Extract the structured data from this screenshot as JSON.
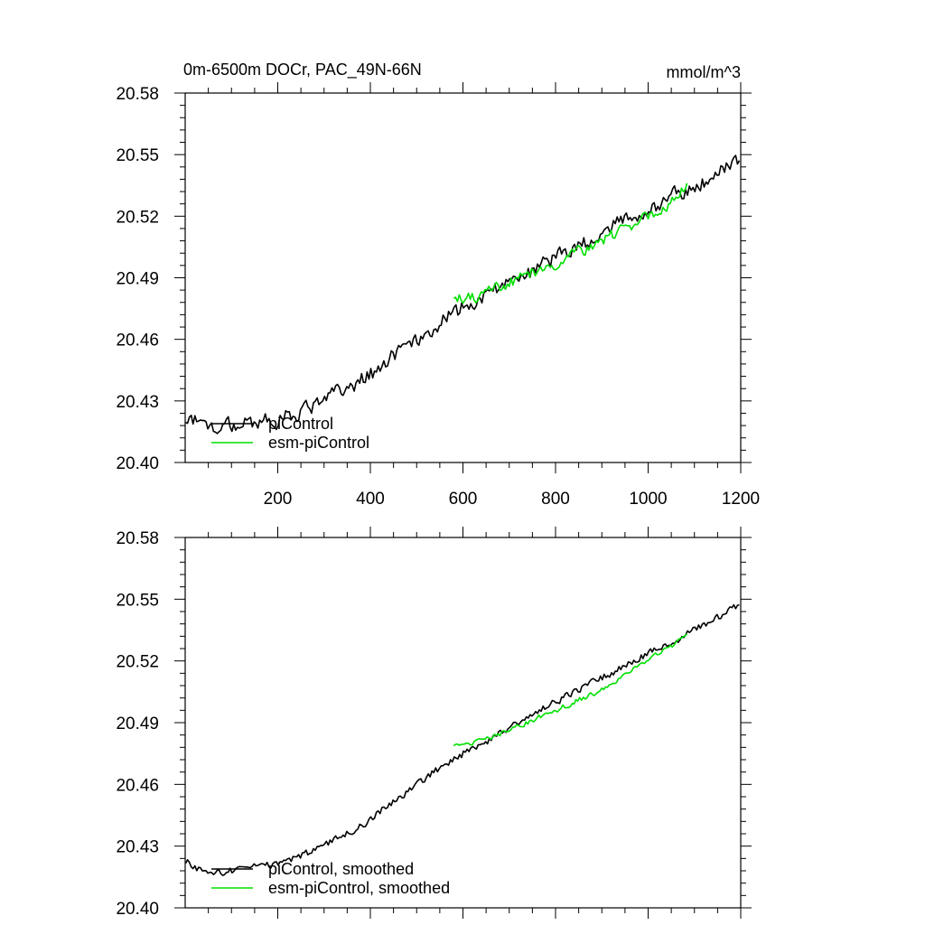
{
  "figure": {
    "title_left": "0m-6500m DOCr, PAC_49N-66N",
    "title_right": "mmol/m^3"
  },
  "colors": {
    "picontrol": "#000000",
    "esm_picontrol": "#00e000"
  },
  "chart_data": [
    {
      "type": "line",
      "title": "0m-6500m DOCr, PAC_49N-66N",
      "units": "mmol/m^3",
      "xlim": [
        0,
        1200
      ],
      "ylim": [
        20.4,
        20.58
      ],
      "xticks": [
        200,
        400,
        600,
        800,
        1000,
        1200
      ],
      "xtick_labels": [
        "200",
        "400",
        "600",
        "800",
        "1000",
        "1200"
      ],
      "yticks": [
        20.4,
        20.43,
        20.46,
        20.49,
        20.52,
        20.55,
        20.58
      ],
      "ytick_labels": [
        "20.40",
        "20.43",
        "20.46",
        "20.49",
        "20.52",
        "20.55",
        "20.58"
      ],
      "legend_position": "bottom-left",
      "noise_scale": 1.0,
      "series": [
        {
          "name": "piControl",
          "color": "#000000",
          "x_range": [
            1,
            1200
          ],
          "trend_x": [
            0,
            50,
            100,
            150,
            200,
            250,
            300,
            350,
            400,
            450,
            500,
            550,
            600,
            650,
            700,
            750,
            800,
            850,
            900,
            950,
            1000,
            1050,
            1100,
            1150,
            1200
          ],
          "trend_y": [
            20.423,
            20.417,
            20.418,
            20.42,
            20.421,
            20.425,
            20.43,
            20.436,
            20.443,
            20.452,
            20.46,
            20.468,
            20.475,
            20.481,
            20.488,
            20.494,
            20.5,
            20.506,
            20.512,
            20.518,
            20.524,
            20.529,
            20.535,
            20.541,
            20.548
          ],
          "noise": 0.0045
        },
        {
          "name": "esm-piControl",
          "color": "#00e000",
          "x_range": [
            580,
            1085
          ],
          "trend_x": [
            580,
            650,
            700,
            750,
            800,
            850,
            900,
            950,
            1000,
            1050,
            1085
          ],
          "trend_y": [
            20.478,
            20.482,
            20.487,
            20.492,
            20.497,
            20.502,
            20.507,
            20.514,
            20.521,
            20.527,
            20.534
          ],
          "noise": 0.0035
        }
      ]
    },
    {
      "type": "line",
      "title": "",
      "xlim": [
        0,
        1200
      ],
      "ylim": [
        20.4,
        20.58
      ],
      "xticks": [
        200,
        400,
        600,
        800,
        1000,
        1200
      ],
      "yticks": [
        20.4,
        20.43,
        20.46,
        20.49,
        20.52,
        20.55,
        20.58
      ],
      "ytick_labels": [
        "20.40",
        "20.43",
        "20.46",
        "20.49",
        "20.52",
        "20.55",
        "20.58"
      ],
      "legend_position": "bottom-left",
      "noise_scale": 0.45,
      "series": [
        {
          "name": "piControl, smoothed",
          "color": "#000000",
          "x_range": [
            1,
            1200
          ],
          "trend_x": [
            0,
            50,
            100,
            150,
            200,
            250,
            300,
            350,
            400,
            450,
            500,
            550,
            600,
            650,
            700,
            750,
            800,
            850,
            900,
            950,
            1000,
            1050,
            1100,
            1150,
            1200
          ],
          "trend_y": [
            20.423,
            20.416,
            20.418,
            20.42,
            20.421,
            20.425,
            20.43,
            20.436,
            20.443,
            20.452,
            20.46,
            20.468,
            20.475,
            20.481,
            20.488,
            20.494,
            20.5,
            20.506,
            20.512,
            20.518,
            20.524,
            20.529,
            20.535,
            20.541,
            20.548
          ],
          "noise": 0.0045
        },
        {
          "name": "esm-piControl, smoothed",
          "color": "#00e000",
          "x_range": [
            580,
            1085
          ],
          "trend_x": [
            580,
            650,
            700,
            750,
            800,
            850,
            900,
            950,
            1000,
            1050,
            1085
          ],
          "trend_y": [
            20.478,
            20.482,
            20.486,
            20.491,
            20.496,
            20.501,
            20.506,
            20.513,
            20.52,
            20.527,
            20.533
          ],
          "noise": 0.0035
        }
      ]
    }
  ]
}
